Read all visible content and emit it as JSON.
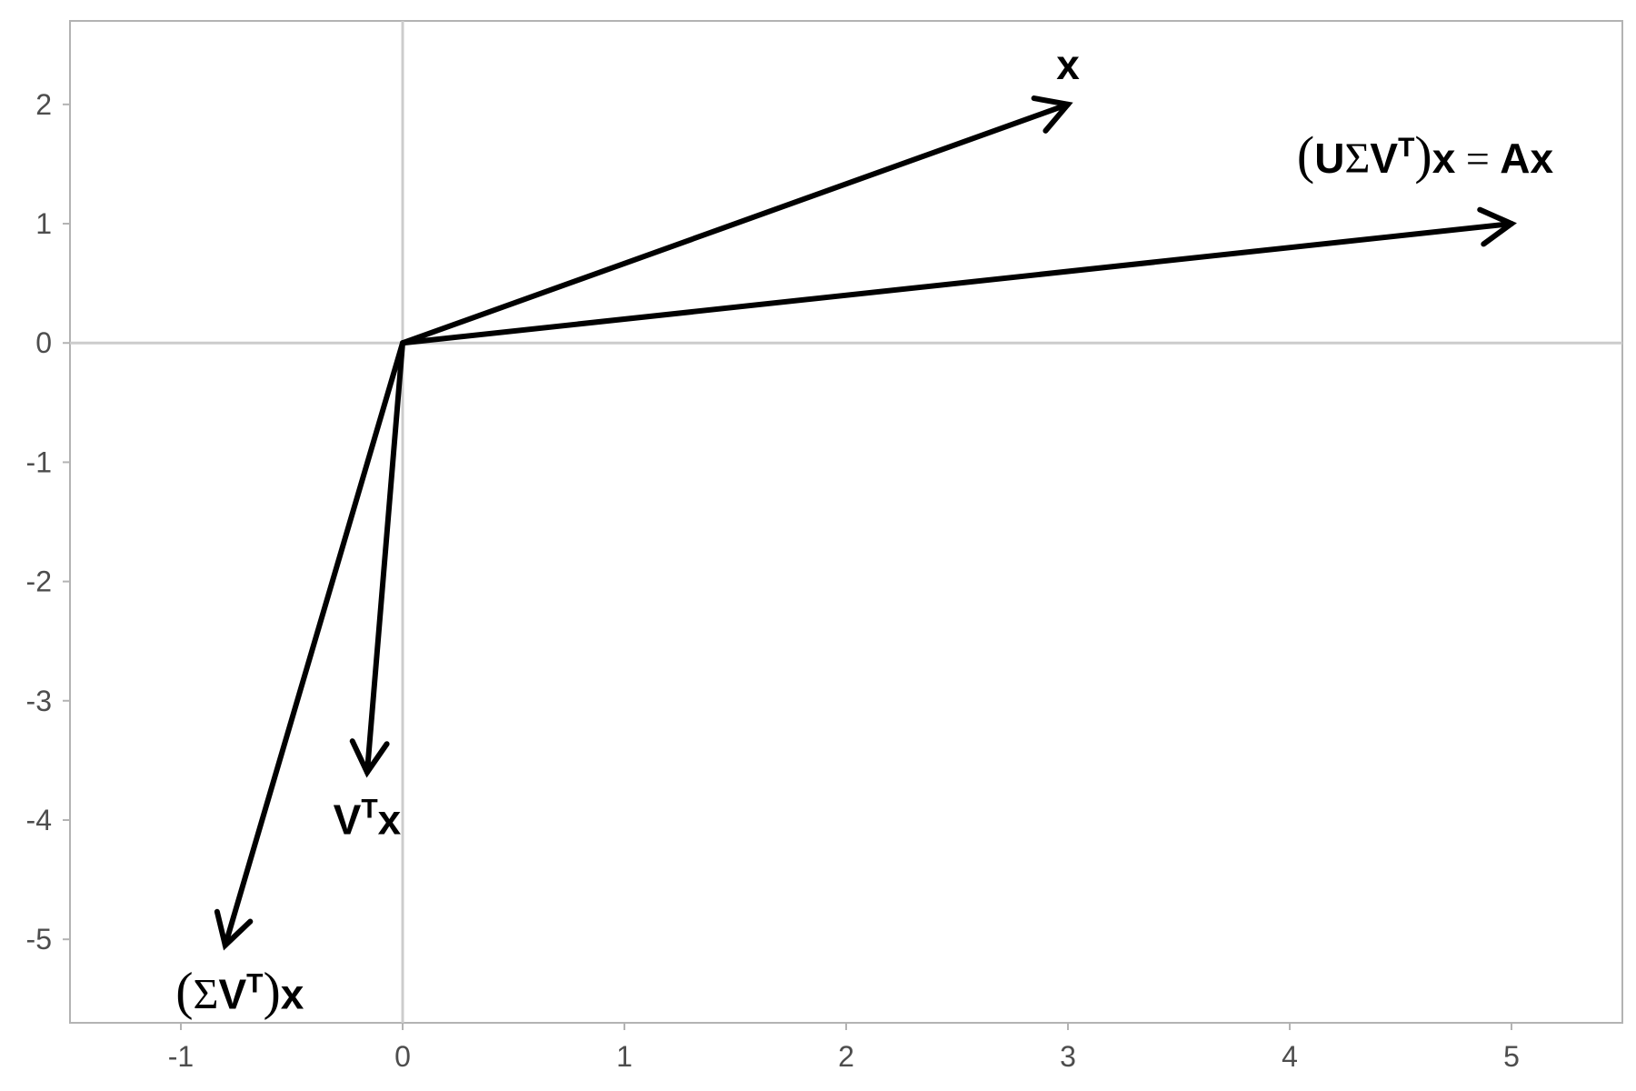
{
  "chart_data": {
    "type": "vector",
    "xlim": [
      -1.5,
      5.5
    ],
    "ylim": [
      -5.7,
      2.7
    ],
    "x_ticks": [
      -1,
      0,
      1,
      2,
      3,
      4,
      5
    ],
    "y_ticks": [
      2,
      1,
      0,
      -1,
      -2,
      -3,
      -4,
      -5
    ],
    "x_tick_labels": [
      "-1",
      "0",
      "1",
      "2",
      "3",
      "4",
      "5"
    ],
    "y_tick_labels": [
      "2",
      "1",
      "0",
      "-1",
      "-2",
      "-3",
      "-4",
      "-5"
    ],
    "grid": "zero-lines",
    "colors": {
      "panel_border": "#b3b3b3",
      "zero_line": "#cccccc",
      "arrow": "#000000",
      "tick_text": "#4d4d4d"
    },
    "vectors": [
      {
        "id": "x",
        "start": [
          0,
          0
        ],
        "end": [
          3,
          2
        ],
        "label": {
          "parts": [
            {
              "text": "x",
              "style": "bold"
            }
          ]
        }
      },
      {
        "id": "usvt-x",
        "start": [
          0,
          0
        ],
        "end": [
          5,
          1
        ],
        "label": {
          "parts": [
            {
              "text": "(",
              "style": "paren"
            },
            {
              "text": "U",
              "style": "bold"
            },
            {
              "text": "Σ",
              "style": "greek"
            },
            {
              "text": "V",
              "style": "bold"
            },
            {
              "text": "T",
              "style": "sup"
            },
            {
              "text": ")",
              "style": "paren"
            },
            {
              "text": "x",
              "style": "bold"
            },
            {
              "text": " = ",
              "style": "eq"
            },
            {
              "text": "Ax",
              "style": "bold"
            }
          ]
        }
      },
      {
        "id": "vt-x",
        "start": [
          0,
          0
        ],
        "end": [
          -0.16,
          -3.6
        ],
        "label": {
          "parts": [
            {
              "text": "V",
              "style": "bold"
            },
            {
              "text": "T",
              "style": "sup"
            },
            {
              "text": "x",
              "style": "bold"
            }
          ]
        }
      },
      {
        "id": "svt-x",
        "start": [
          0,
          0
        ],
        "end": [
          -0.8,
          -5.05
        ],
        "label": {
          "parts": [
            {
              "text": "(",
              "style": "paren"
            },
            {
              "text": "Σ",
              "style": "greek"
            },
            {
              "text": "V",
              "style": "bold"
            },
            {
              "text": "T",
              "style": "sup"
            },
            {
              "text": ")",
              "style": "paren"
            },
            {
              "text": "x",
              "style": "bold"
            }
          ]
        }
      }
    ]
  }
}
